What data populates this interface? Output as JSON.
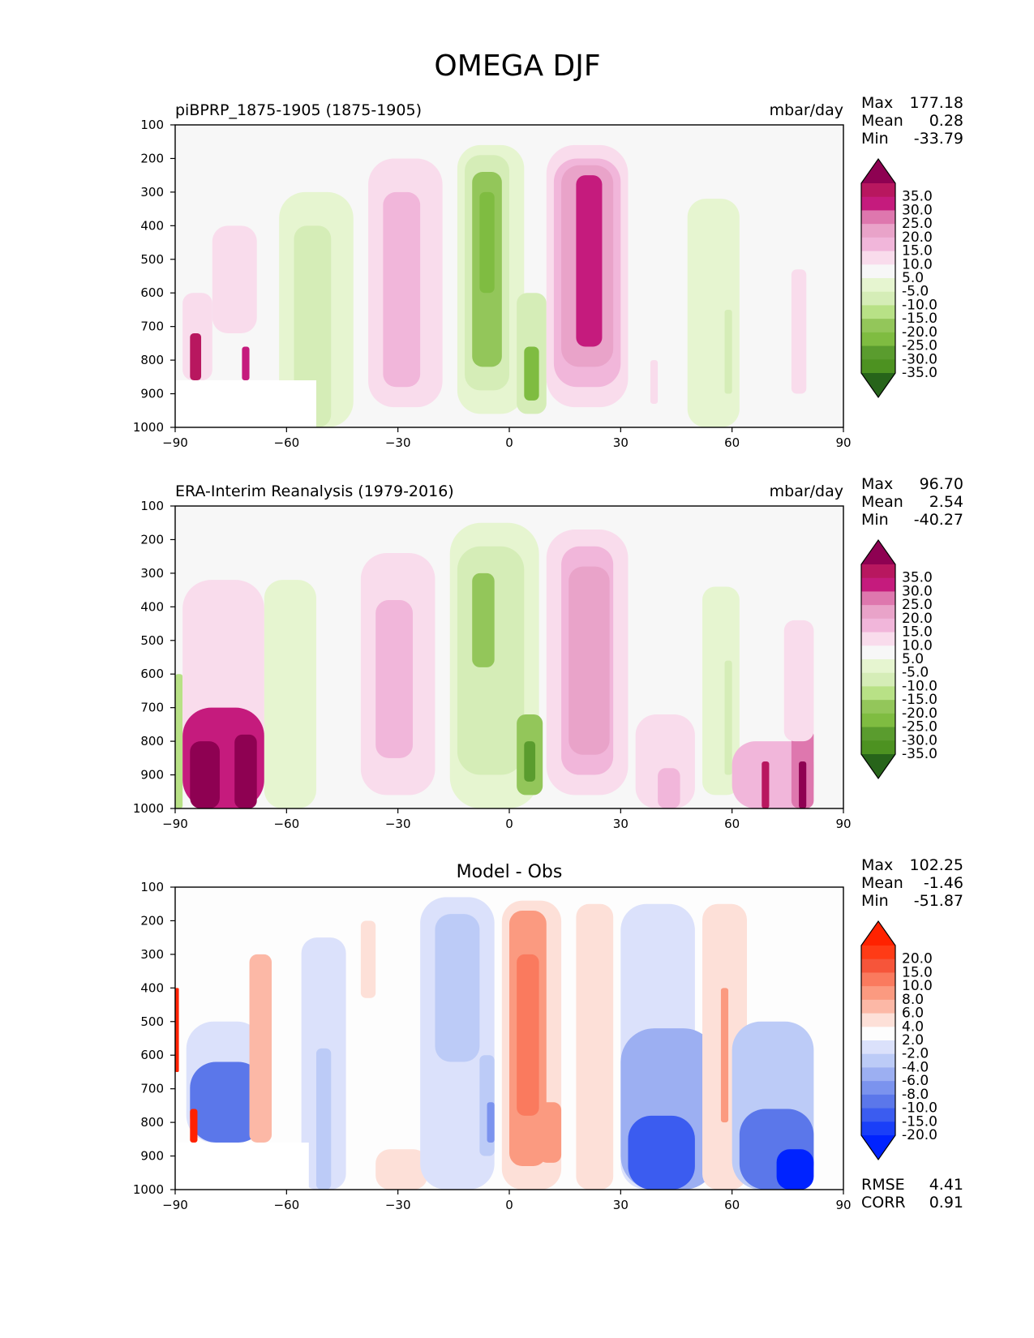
{
  "figure_title": "OMEGA DJF",
  "chart_data": [
    {
      "type": "heatmap",
      "title": "piBPRP_1875-1905 (1875-1905)",
      "units": "mbar/day",
      "x_ticks": [
        -90,
        -60,
        -30,
        0,
        30,
        60,
        90
      ],
      "y_ticks": [
        100,
        200,
        300,
        400,
        500,
        600,
        700,
        800,
        900,
        1000
      ],
      "xlim": [
        -90,
        90
      ],
      "ylim": [
        1000,
        100
      ],
      "stats": {
        "max": "177.18",
        "mean": "0.28",
        "min": "-33.79"
      },
      "colorbar": {
        "labels": [
          "35.0",
          "30.0",
          "25.0",
          "20.0",
          "15.0",
          "10.0",
          "5.0",
          "-5.0",
          "-10.0",
          "-15.0",
          "-20.0",
          "-25.0",
          "-30.0",
          "-35.0"
        ],
        "colors": [
          "#8e0152",
          "#b8175f",
          "#c51b7d",
          "#de77ae",
          "#e9a3c9",
          "#f1b6da",
          "#f9dcec",
          "#f7f7f7",
          "#e6f5d0",
          "#d5edb7",
          "#b8e186",
          "#93c65a",
          "#7fbc41",
          "#5a9c2e",
          "#4d9221",
          "#27641a"
        ]
      },
      "cells": [
        {
          "lat": [
            -88,
            -80
          ],
          "p": [
            600,
            860
          ],
          "v": 8
        },
        {
          "lat": [
            -86,
            -83
          ],
          "p": [
            720,
            860
          ],
          "v": 30
        },
        {
          "lat": [
            -72,
            -70
          ],
          "p": [
            760,
            860
          ],
          "v": 25
        },
        {
          "lat": [
            -80,
            -68
          ],
          "p": [
            400,
            720
          ],
          "v": 6
        },
        {
          "lat": [
            -62,
            -42
          ],
          "p": [
            300,
            1000
          ],
          "v": -6
        },
        {
          "lat": [
            -58,
            -48
          ],
          "p": [
            400,
            1000
          ],
          "v": -12
        },
        {
          "lat": [
            -38,
            -18
          ],
          "p": [
            200,
            940
          ],
          "v": 7
        },
        {
          "lat": [
            -34,
            -24
          ],
          "p": [
            300,
            880
          ],
          "v": 11
        },
        {
          "lat": [
            -14,
            4
          ],
          "p": [
            160,
            960
          ],
          "v": -7
        },
        {
          "lat": [
            -12,
            0
          ],
          "p": [
            190,
            890
          ],
          "v": -14
        },
        {
          "lat": [
            -10,
            -2
          ],
          "p": [
            240,
            820
          ],
          "v": -22
        },
        {
          "lat": [
            -8,
            -4
          ],
          "p": [
            300,
            600
          ],
          "v": -30
        },
        {
          "lat": [
            2,
            10
          ],
          "p": [
            600,
            960
          ],
          "v": -14
        },
        {
          "lat": [
            4,
            8
          ],
          "p": [
            760,
            920
          ],
          "v": -30
        },
        {
          "lat": [
            10,
            32
          ],
          "p": [
            160,
            940
          ],
          "v": 7
        },
        {
          "lat": [
            12,
            30
          ],
          "p": [
            200,
            880
          ],
          "v": 13
        },
        {
          "lat": [
            14,
            28
          ],
          "p": [
            220,
            820
          ],
          "v": 18
        },
        {
          "lat": [
            18,
            25
          ],
          "p": [
            250,
            760
          ],
          "v": 25
        },
        {
          "lat": [
            38,
            40
          ],
          "p": [
            800,
            930
          ],
          "v": 6
        },
        {
          "lat": [
            48,
            62
          ],
          "p": [
            320,
            1000
          ],
          "v": -6
        },
        {
          "lat": [
            58,
            60
          ],
          "p": [
            650,
            900
          ],
          "v": -12
        },
        {
          "lat": [
            76,
            80
          ],
          "p": [
            530,
            900
          ],
          "v": 6
        }
      ],
      "masked": {
        "lat": [
          -90,
          -52
        ],
        "p": [
          860,
          1000
        ]
      }
    },
    {
      "type": "heatmap",
      "title": "ERA-Interim Reanalysis (1979-2016)",
      "units": "mbar/day",
      "x_ticks": [
        -90,
        -60,
        -30,
        0,
        30,
        60,
        90
      ],
      "y_ticks": [
        100,
        200,
        300,
        400,
        500,
        600,
        700,
        800,
        900,
        1000
      ],
      "xlim": [
        -90,
        90
      ],
      "ylim": [
        1000,
        100
      ],
      "stats": {
        "max": "96.70",
        "mean": "2.54",
        "min": "-40.27"
      },
      "colorbar": {
        "labels": [
          "35.0",
          "30.0",
          "25.0",
          "20.0",
          "15.0",
          "10.0",
          "5.0",
          "-5.0",
          "-10.0",
          "-15.0",
          "-20.0",
          "-25.0",
          "-30.0",
          "-35.0"
        ],
        "colors": [
          "#8e0152",
          "#b8175f",
          "#c51b7d",
          "#de77ae",
          "#e9a3c9",
          "#f1b6da",
          "#f9dcec",
          "#f7f7f7",
          "#e6f5d0",
          "#d5edb7",
          "#b8e186",
          "#93c65a",
          "#7fbc41",
          "#5a9c2e",
          "#4d9221",
          "#27641a"
        ]
      },
      "cells": [
        {
          "lat": [
            -90,
            -88
          ],
          "p": [
            600,
            1000
          ],
          "v": -18
        },
        {
          "lat": [
            -88,
            -66
          ],
          "p": [
            320,
            1000
          ],
          "v": 6
        },
        {
          "lat": [
            -88,
            -66
          ],
          "p": [
            700,
            1000
          ],
          "v": 25
        },
        {
          "lat": [
            -86,
            -78
          ],
          "p": [
            800,
            1000
          ],
          "v": 40
        },
        {
          "lat": [
            -74,
            -68
          ],
          "p": [
            780,
            1000
          ],
          "v": 40
        },
        {
          "lat": [
            -66,
            -52
          ],
          "p": [
            320,
            1000
          ],
          "v": -6
        },
        {
          "lat": [
            -40,
            -20
          ],
          "p": [
            240,
            960
          ],
          "v": 7
        },
        {
          "lat": [
            -36,
            -26
          ],
          "p": [
            380,
            850
          ],
          "v": 11
        },
        {
          "lat": [
            -16,
            8
          ],
          "p": [
            150,
            1000
          ],
          "v": -6
        },
        {
          "lat": [
            -14,
            4
          ],
          "p": [
            220,
            900
          ],
          "v": -14
        },
        {
          "lat": [
            -10,
            -4
          ],
          "p": [
            300,
            580
          ],
          "v": -22
        },
        {
          "lat": [
            2,
            9
          ],
          "p": [
            720,
            960
          ],
          "v": -25
        },
        {
          "lat": [
            4,
            7
          ],
          "p": [
            800,
            920
          ],
          "v": -35
        },
        {
          "lat": [
            10,
            32
          ],
          "p": [
            170,
            960
          ],
          "v": 7
        },
        {
          "lat": [
            14,
            28
          ],
          "p": [
            220,
            900
          ],
          "v": 13
        },
        {
          "lat": [
            16,
            27
          ],
          "p": [
            280,
            840
          ],
          "v": 18
        },
        {
          "lat": [
            34,
            50
          ],
          "p": [
            720,
            1000
          ],
          "v": 6
        },
        {
          "lat": [
            40,
            46
          ],
          "p": [
            880,
            1000
          ],
          "v": 13
        },
        {
          "lat": [
            52,
            62
          ],
          "p": [
            340,
            960
          ],
          "v": -6
        },
        {
          "lat": [
            58,
            60
          ],
          "p": [
            560,
            900
          ],
          "v": -12
        },
        {
          "lat": [
            60,
            82
          ],
          "p": [
            800,
            1000
          ],
          "v": 10
        },
        {
          "lat": [
            68,
            70
          ],
          "p": [
            860,
            1000
          ],
          "v": 30
        },
        {
          "lat": [
            76,
            82
          ],
          "p": [
            760,
            1000
          ],
          "v": 20
        },
        {
          "lat": [
            78,
            80
          ],
          "p": [
            860,
            1000
          ],
          "v": 35
        },
        {
          "lat": [
            74,
            82
          ],
          "p": [
            440,
            800
          ],
          "v": 6
        }
      ],
      "masked": null
    },
    {
      "type": "heatmap",
      "title": "Model - Obs",
      "units": "",
      "x_ticks": [
        -90,
        -60,
        -30,
        0,
        30,
        60,
        90
      ],
      "y_ticks": [
        100,
        200,
        300,
        400,
        500,
        600,
        700,
        800,
        900,
        1000
      ],
      "xlim": [
        -90,
        90
      ],
      "ylim": [
        1000,
        100
      ],
      "stats": {
        "max": "102.25",
        "mean": "-1.46",
        "min": "-51.87"
      },
      "rmse": "4.41",
      "corr": "0.91",
      "colorbar": {
        "labels": [
          "20.0",
          "15.0",
          "10.0",
          "8.0",
          "6.0",
          "4.0",
          "2.0",
          "-2.0",
          "-4.0",
          "-6.0",
          "-8.0",
          "-10.0",
          "-15.0",
          "-20.0"
        ],
        "colors": [
          "#ff2200",
          "#ff3b16",
          "#f6553a",
          "#fa7a5e",
          "#fb9a80",
          "#fcb8a6",
          "#fde0d8",
          "#fdfdfd",
          "#dbe1fb",
          "#bccbf7",
          "#9caff2",
          "#7b93ee",
          "#5b77ea",
          "#3b5cf0",
          "#1a3ff8",
          "#0023ff"
        ]
      },
      "cells": [
        {
          "lat": [
            -90,
            -89
          ],
          "p": [
            400,
            650
          ],
          "v": 22
        },
        {
          "lat": [
            -87,
            -66
          ],
          "p": [
            500,
            860
          ],
          "v": -3
        },
        {
          "lat": [
            -86,
            -66
          ],
          "p": [
            620,
            860
          ],
          "v": -12
        },
        {
          "lat": [
            -86,
            -84
          ],
          "p": [
            760,
            860
          ],
          "v": 22
        },
        {
          "lat": [
            -70,
            -64
          ],
          "p": [
            300,
            860
          ],
          "v": 5
        },
        {
          "lat": [
            -56,
            -44
          ],
          "p": [
            250,
            1000
          ],
          "v": -3
        },
        {
          "lat": [
            -52,
            -48
          ],
          "p": [
            580,
            1000
          ],
          "v": -6
        },
        {
          "lat": [
            -40,
            -36
          ],
          "p": [
            200,
            430
          ],
          "v": 3
        },
        {
          "lat": [
            -36,
            -22
          ],
          "p": [
            880,
            1000
          ],
          "v": 3
        },
        {
          "lat": [
            -24,
            -4
          ],
          "p": [
            130,
            1000
          ],
          "v": -3
        },
        {
          "lat": [
            -20,
            -8
          ],
          "p": [
            180,
            620
          ],
          "v": -6
        },
        {
          "lat": [
            -8,
            -4
          ],
          "p": [
            600,
            900
          ],
          "v": -6
        },
        {
          "lat": [
            -6,
            -4
          ],
          "p": [
            740,
            860
          ],
          "v": -10
        },
        {
          "lat": [
            -2,
            14
          ],
          "p": [
            140,
            1000
          ],
          "v": 3
        },
        {
          "lat": [
            0,
            10
          ],
          "p": [
            170,
            930
          ],
          "v": 7
        },
        {
          "lat": [
            2,
            8
          ],
          "p": [
            300,
            780
          ],
          "v": 9
        },
        {
          "lat": [
            8,
            14
          ],
          "p": [
            740,
            920
          ],
          "v": 7
        },
        {
          "lat": [
            18,
            28
          ],
          "p": [
            150,
            1000
          ],
          "v": 3
        },
        {
          "lat": [
            30,
            50
          ],
          "p": [
            150,
            1000
          ],
          "v": -3
        },
        {
          "lat": [
            30,
            56
          ],
          "p": [
            520,
            1000
          ],
          "v": -8
        },
        {
          "lat": [
            32,
            50
          ],
          "p": [
            780,
            1000
          ],
          "v": -18
        },
        {
          "lat": [
            52,
            64
          ],
          "p": [
            150,
            1000
          ],
          "v": 3
        },
        {
          "lat": [
            57,
            59
          ],
          "p": [
            400,
            800
          ],
          "v": 7
        },
        {
          "lat": [
            60,
            82
          ],
          "p": [
            500,
            1000
          ],
          "v": -5
        },
        {
          "lat": [
            62,
            82
          ],
          "p": [
            760,
            1000
          ],
          "v": -14
        },
        {
          "lat": [
            72,
            82
          ],
          "p": [
            880,
            1000
          ],
          "v": -22
        }
      ],
      "masked": {
        "lat": [
          -90,
          -54
        ],
        "p": [
          860,
          1000
        ]
      }
    }
  ]
}
